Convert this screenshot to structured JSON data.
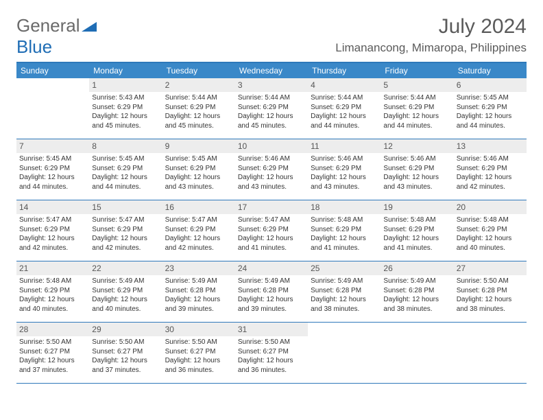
{
  "logo": {
    "general": "General",
    "blue": "Blue"
  },
  "title": "July 2024",
  "location": "Limanancong, Mimaropa, Philippines",
  "colors": {
    "header_blue": "#3a88c8",
    "border_blue": "#2d78ba",
    "daynum_bg": "#ededed",
    "text_gray": "#5a5a5a",
    "logo_blue": "#1f6db5"
  },
  "daysOfWeek": [
    "Sunday",
    "Monday",
    "Tuesday",
    "Wednesday",
    "Thursday",
    "Friday",
    "Saturday"
  ],
  "weeks": [
    [
      {
        "n": "",
        "sr": "",
        "ss": "",
        "dl": ""
      },
      {
        "n": "1",
        "sr": "Sunrise: 5:43 AM",
        "ss": "Sunset: 6:29 PM",
        "dl": "Daylight: 12 hours and 45 minutes."
      },
      {
        "n": "2",
        "sr": "Sunrise: 5:44 AM",
        "ss": "Sunset: 6:29 PM",
        "dl": "Daylight: 12 hours and 45 minutes."
      },
      {
        "n": "3",
        "sr": "Sunrise: 5:44 AM",
        "ss": "Sunset: 6:29 PM",
        "dl": "Daylight: 12 hours and 45 minutes."
      },
      {
        "n": "4",
        "sr": "Sunrise: 5:44 AM",
        "ss": "Sunset: 6:29 PM",
        "dl": "Daylight: 12 hours and 44 minutes."
      },
      {
        "n": "5",
        "sr": "Sunrise: 5:44 AM",
        "ss": "Sunset: 6:29 PM",
        "dl": "Daylight: 12 hours and 44 minutes."
      },
      {
        "n": "6",
        "sr": "Sunrise: 5:45 AM",
        "ss": "Sunset: 6:29 PM",
        "dl": "Daylight: 12 hours and 44 minutes."
      }
    ],
    [
      {
        "n": "7",
        "sr": "Sunrise: 5:45 AM",
        "ss": "Sunset: 6:29 PM",
        "dl": "Daylight: 12 hours and 44 minutes."
      },
      {
        "n": "8",
        "sr": "Sunrise: 5:45 AM",
        "ss": "Sunset: 6:29 PM",
        "dl": "Daylight: 12 hours and 44 minutes."
      },
      {
        "n": "9",
        "sr": "Sunrise: 5:45 AM",
        "ss": "Sunset: 6:29 PM",
        "dl": "Daylight: 12 hours and 43 minutes."
      },
      {
        "n": "10",
        "sr": "Sunrise: 5:46 AM",
        "ss": "Sunset: 6:29 PM",
        "dl": "Daylight: 12 hours and 43 minutes."
      },
      {
        "n": "11",
        "sr": "Sunrise: 5:46 AM",
        "ss": "Sunset: 6:29 PM",
        "dl": "Daylight: 12 hours and 43 minutes."
      },
      {
        "n": "12",
        "sr": "Sunrise: 5:46 AM",
        "ss": "Sunset: 6:29 PM",
        "dl": "Daylight: 12 hours and 43 minutes."
      },
      {
        "n": "13",
        "sr": "Sunrise: 5:46 AM",
        "ss": "Sunset: 6:29 PM",
        "dl": "Daylight: 12 hours and 42 minutes."
      }
    ],
    [
      {
        "n": "14",
        "sr": "Sunrise: 5:47 AM",
        "ss": "Sunset: 6:29 PM",
        "dl": "Daylight: 12 hours and 42 minutes."
      },
      {
        "n": "15",
        "sr": "Sunrise: 5:47 AM",
        "ss": "Sunset: 6:29 PM",
        "dl": "Daylight: 12 hours and 42 minutes."
      },
      {
        "n": "16",
        "sr": "Sunrise: 5:47 AM",
        "ss": "Sunset: 6:29 PM",
        "dl": "Daylight: 12 hours and 42 minutes."
      },
      {
        "n": "17",
        "sr": "Sunrise: 5:47 AM",
        "ss": "Sunset: 6:29 PM",
        "dl": "Daylight: 12 hours and 41 minutes."
      },
      {
        "n": "18",
        "sr": "Sunrise: 5:48 AM",
        "ss": "Sunset: 6:29 PM",
        "dl": "Daylight: 12 hours and 41 minutes."
      },
      {
        "n": "19",
        "sr": "Sunrise: 5:48 AM",
        "ss": "Sunset: 6:29 PM",
        "dl": "Daylight: 12 hours and 41 minutes."
      },
      {
        "n": "20",
        "sr": "Sunrise: 5:48 AM",
        "ss": "Sunset: 6:29 PM",
        "dl": "Daylight: 12 hours and 40 minutes."
      }
    ],
    [
      {
        "n": "21",
        "sr": "Sunrise: 5:48 AM",
        "ss": "Sunset: 6:29 PM",
        "dl": "Daylight: 12 hours and 40 minutes."
      },
      {
        "n": "22",
        "sr": "Sunrise: 5:49 AM",
        "ss": "Sunset: 6:29 PM",
        "dl": "Daylight: 12 hours and 40 minutes."
      },
      {
        "n": "23",
        "sr": "Sunrise: 5:49 AM",
        "ss": "Sunset: 6:28 PM",
        "dl": "Daylight: 12 hours and 39 minutes."
      },
      {
        "n": "24",
        "sr": "Sunrise: 5:49 AM",
        "ss": "Sunset: 6:28 PM",
        "dl": "Daylight: 12 hours and 39 minutes."
      },
      {
        "n": "25",
        "sr": "Sunrise: 5:49 AM",
        "ss": "Sunset: 6:28 PM",
        "dl": "Daylight: 12 hours and 38 minutes."
      },
      {
        "n": "26",
        "sr": "Sunrise: 5:49 AM",
        "ss": "Sunset: 6:28 PM",
        "dl": "Daylight: 12 hours and 38 minutes."
      },
      {
        "n": "27",
        "sr": "Sunrise: 5:50 AM",
        "ss": "Sunset: 6:28 PM",
        "dl": "Daylight: 12 hours and 38 minutes."
      }
    ],
    [
      {
        "n": "28",
        "sr": "Sunrise: 5:50 AM",
        "ss": "Sunset: 6:27 PM",
        "dl": "Daylight: 12 hours and 37 minutes."
      },
      {
        "n": "29",
        "sr": "Sunrise: 5:50 AM",
        "ss": "Sunset: 6:27 PM",
        "dl": "Daylight: 12 hours and 37 minutes."
      },
      {
        "n": "30",
        "sr": "Sunrise: 5:50 AM",
        "ss": "Sunset: 6:27 PM",
        "dl": "Daylight: 12 hours and 36 minutes."
      },
      {
        "n": "31",
        "sr": "Sunrise: 5:50 AM",
        "ss": "Sunset: 6:27 PM",
        "dl": "Daylight: 12 hours and 36 minutes."
      },
      {
        "n": "",
        "sr": "",
        "ss": "",
        "dl": ""
      },
      {
        "n": "",
        "sr": "",
        "ss": "",
        "dl": ""
      },
      {
        "n": "",
        "sr": "",
        "ss": "",
        "dl": ""
      }
    ]
  ]
}
